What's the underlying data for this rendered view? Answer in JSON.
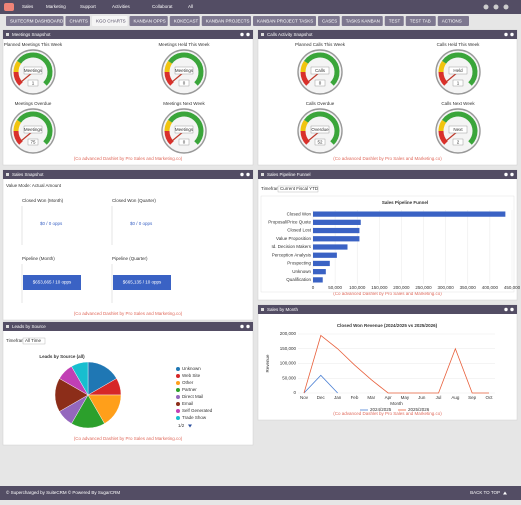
{
  "nav": {
    "menus": [
      "Sales",
      "Marketing",
      "Support",
      "Activities",
      "Collaborat",
      "All"
    ]
  },
  "tabs": {
    "items": [
      "SUITECRM DASHBOARD",
      "CHARTS",
      "KGO CHARTS",
      "KANBAN OPPS",
      "KOKECAST",
      "KANBAN PROJECTS",
      "KANBAN PROJECT TASKS",
      "CASES",
      "TASKS KANBAN",
      "TEST",
      "TEST TAB",
      "ACTIONS"
    ],
    "active": 2
  },
  "meetings": {
    "title": "Meetings Snapshot",
    "footer": "(Co advanced Dashlet by Pro Sales and Marketing.co)",
    "gauges": [
      {
        "label": "Planned Meetings This Week",
        "name": "Meetings",
        "value": 1
      },
      {
        "label": "Meetings Held This Week",
        "name": "Meetings",
        "value": 0
      },
      {
        "label": "Meetings Overdue",
        "name": "Meetings",
        "value": 75
      },
      {
        "label": "Meetings Next Week",
        "name": "Meetings",
        "value": 0
      }
    ]
  },
  "calls": {
    "title": "Calls Activity Snapshot",
    "footer": "(Co advanced Dashlet by Pro Sales and Marketing.co)",
    "gauges": [
      {
        "label": "Planned Calls This Week",
        "name": "Calls",
        "value": 0
      },
      {
        "label": "Calls Held This Week",
        "name": "Held",
        "value": 1
      },
      {
        "label": "Calls Overdue",
        "name": "Overdue",
        "value": 52
      },
      {
        "label": "Calls Next Week",
        "name": "Next",
        "value": 2
      }
    ]
  },
  "sales_snapshot": {
    "title": "Sales Snapshot",
    "mode": "Value Mode: Actual Amount",
    "footer": "(Co advanced Dashlet by Pro Sales and Marketing.co)",
    "panels": [
      {
        "title": "Closed Won (Month)",
        "label": "$0 / 0 opps"
      },
      {
        "title": "Closed Won (Quarter)",
        "label": "$0 / 0 opps"
      },
      {
        "title": "Pipeline (Month)",
        "label": "$653,665 / 10 opps"
      },
      {
        "title": "Pipeline (Quarter)",
        "label": "$665,135 / 10 opps"
      }
    ]
  },
  "funnel": {
    "title": "Sales Pipeline Funnel",
    "timeframe_label": "Timeframe:",
    "timeframe": "Current Fiscal YTD",
    "footer": "(Co advanced Dashlet by Pro Sales and Marketing.co)",
    "chart": {
      "type": "bar",
      "orientation": "horizontal",
      "title": "Sales Pipeline Funnel",
      "color": "#3a62c4",
      "categories": [
        "Closed Won",
        "Proposal/Price Quote",
        "Closed Lost",
        "Value Proposition",
        "Id. Decision Makers",
        "Perception Analysis",
        "Prospecting",
        "Unknown",
        "Qualification"
      ],
      "values": [
        435000,
        108000,
        105000,
        105000,
        78000,
        54000,
        38000,
        29000,
        22000
      ],
      "xlim": [
        0,
        450000
      ],
      "xticks": [
        0,
        {
          "value": 50000,
          "label": "50,000"
        },
        {
          "value": 100000,
          "label": "100,000"
        },
        {
          "value": 150000,
          "label": "150,000"
        },
        {
          "value": 200000,
          "label": "200,000"
        },
        {
          "value": 250000,
          "label": "250,000"
        },
        {
          "value": 300000,
          "label": "300,000"
        },
        {
          "value": 350000,
          "label": "350,000"
        },
        {
          "value": 400000,
          "label": "400,000"
        },
        {
          "value": 450000,
          "label": "450,000"
        }
      ],
      "grid": true
    }
  },
  "leads": {
    "title": "Leads by Source",
    "timeframe_label": "Timeframe:",
    "timeframe": "All Time",
    "pager": "1/2",
    "footer": "(Co advanced Dashlet by Pro Sales and Marketing.co)",
    "chart": {
      "type": "pie",
      "title": "Leads by Source (all)",
      "categories": [
        "Unknown",
        "Web Site",
        "Other",
        "Partner",
        "Direct Mail",
        "Email",
        "Self Generated",
        "Trade Show"
      ],
      "values": [
        2,
        1,
        2,
        2,
        1,
        2,
        1,
        1
      ],
      "colors": [
        "#1f77b4",
        "#d62728",
        "#ff9f1a",
        "#2ca02c",
        "#9467bd",
        "#8c2d19",
        "#c13fb4",
        "#17becf"
      ]
    }
  },
  "sales_month": {
    "title": "Sales by Month",
    "footer": "(Co advanced Dashlet by Pro Sales and Marketing.co)",
    "chart": {
      "type": "line",
      "title": "Closed Won Revenue (2024/2025 vs 2025/2026)",
      "xlabel": "Month",
      "ylabel": "Revenue",
      "categories": [
        "Nov",
        "Dec",
        "Jan",
        "Feb",
        "Mar",
        "Apr",
        "May",
        "Jun",
        "Jul",
        "Aug",
        "Sep",
        "Oct"
      ],
      "series": [
        {
          "name": "2024/2025",
          "color": "#4a7fd4",
          "values": [
            0,
            60000,
            0,
            null,
            null,
            null,
            null,
            null,
            null,
            null,
            null,
            null
          ]
        },
        {
          "name": "2025/2026",
          "color": "#e8603c",
          "values": [
            0,
            195000,
            150000,
            95000,
            45000,
            0,
            0,
            0,
            0,
            150000,
            0,
            0
          ]
        }
      ],
      "ylim": [
        0,
        200000
      ],
      "yticks": [
        0,
        {
          "value": 50000,
          "label": "50,000"
        },
        {
          "value": 100000,
          "label": "100,000"
        },
        {
          "value": 150000,
          "label": "150,000"
        },
        {
          "value": 200000,
          "label": "200,000"
        }
      ],
      "grid": true
    }
  },
  "footer": {
    "left": "© Supercharged by SuiteCRM   © Powered By SugarCRM",
    "right": "BACK TO TOP"
  }
}
